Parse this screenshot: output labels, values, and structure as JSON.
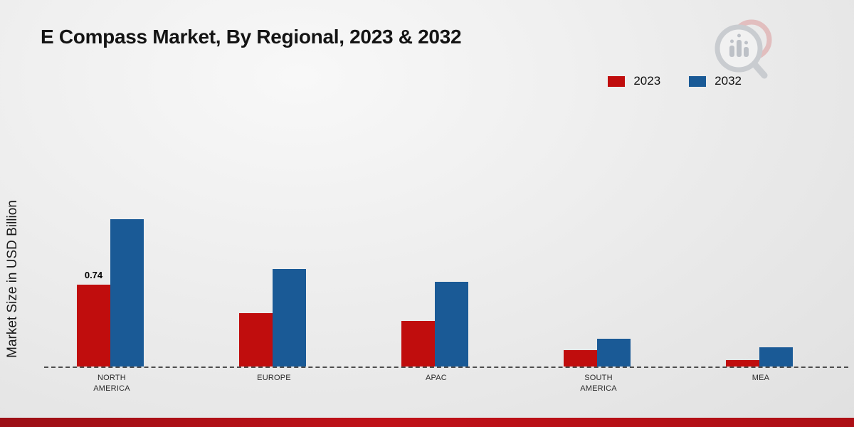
{
  "title": "E Compass Market, By Regional, 2023 & 2032",
  "ylabel": "Market Size in USD Billion",
  "colors": {
    "series_2023": "#c00d0d",
    "series_2032": "#1a5a96",
    "footer_bar": "#b6131a",
    "background": "#ededed",
    "title_text": "#141414"
  },
  "chart_data": {
    "type": "bar",
    "title": "E Compass Market, By Regional, 2023 & 2032",
    "xlabel": "",
    "ylabel": "Market Size in USD Billion",
    "categories": [
      "NORTH AMERICA",
      "EUROPE",
      "APAC",
      "SOUTH AMERICA",
      "MEA"
    ],
    "series": [
      {
        "name": "2023",
        "color": "#c00d0d",
        "values": [
          0.74,
          0.48,
          0.41,
          0.15,
          0.06
        ]
      },
      {
        "name": "2032",
        "color": "#1a5a96",
        "values": [
          1.33,
          0.88,
          0.76,
          0.25,
          0.17
        ]
      }
    ],
    "annotations": [
      {
        "text": "0.74",
        "category_index": 0,
        "series_index": 0
      }
    ],
    "ylim": [
      0,
      1.5
    ],
    "grid": false,
    "axis_style": "dashed-baseline-only",
    "legend_position": "top-right"
  }
}
